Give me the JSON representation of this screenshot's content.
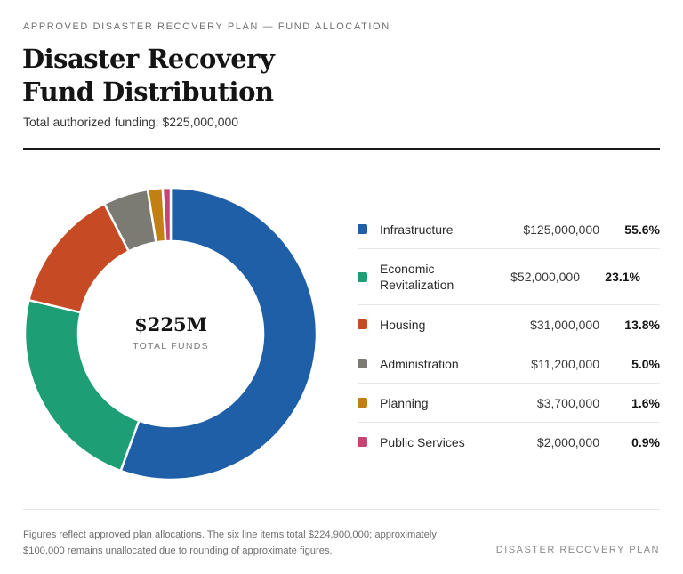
{
  "header": {
    "eyebrow": "APPROVED DISASTER RECOVERY PLAN — FUND ALLOCATION",
    "title_line1": "Disaster Recovery",
    "title_line2": "Fund Distribution",
    "subtitle": "Total authorized funding: $225,000,000"
  },
  "center": {
    "value": "$225M",
    "label": "TOTAL FUNDS"
  },
  "chart_data": {
    "type": "pie",
    "title": "Disaster Recovery Fund Distribution",
    "total": 225000000,
    "slices": [
      {
        "name": "Infrastructure",
        "value": 125000000,
        "amount": "$125,000,000",
        "pct": "55.6%",
        "color": "#1f5fa8"
      },
      {
        "name": "Economic Revitalization",
        "value": 52000000,
        "amount": "$52,000,000",
        "pct": "23.1%",
        "color": "#1e9e74"
      },
      {
        "name": "Housing",
        "value": 31000000,
        "amount": "$31,000,000",
        "pct": "13.8%",
        "color": "#c64a23"
      },
      {
        "name": "Administration",
        "value": 11200000,
        "amount": "$11,200,000",
        "pct": "5.0%",
        "color": "#7b7b73"
      },
      {
        "name": "Planning",
        "value": 3700000,
        "amount": "$3,700,000",
        "pct": "1.6%",
        "color": "#c17f14"
      },
      {
        "name": "Public Services",
        "value": 2000000,
        "amount": "$2,000,000",
        "pct": "0.9%",
        "color": "#c8436f"
      }
    ]
  },
  "footer": {
    "note": "Figures reflect approved plan allocations. The six line items total $224,900,000; approximately $100,000 remains unallocated due to rounding of approximate figures.",
    "brand": "DISASTER RECOVERY PLAN"
  }
}
